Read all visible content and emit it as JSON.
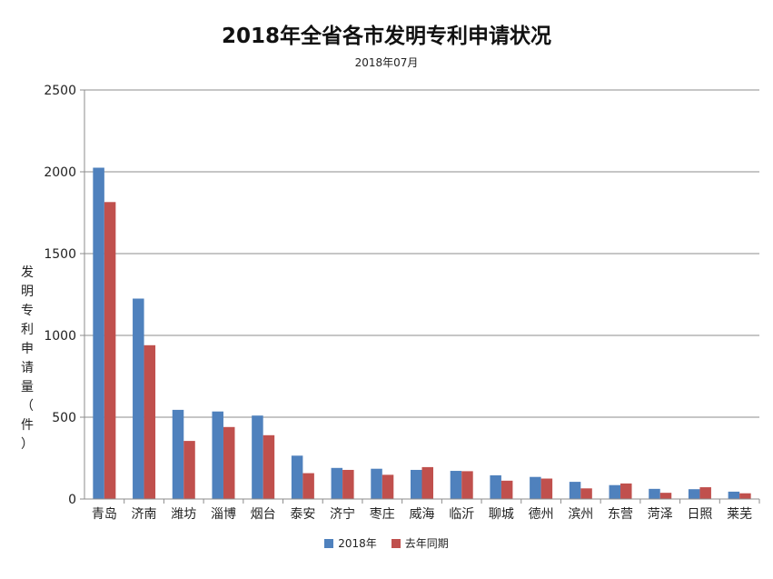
{
  "chart_data": {
    "type": "bar",
    "title": "2018年全省各市发明专利申请状况",
    "subtitle": "2018年07月",
    "ylabel": "发明专利申请量（件）",
    "ylim": [
      0,
      2500
    ],
    "yticks": [
      "0",
      "500",
      "1000",
      "1500",
      "2000",
      "2500"
    ],
    "grid": true,
    "legend_position": "bottom",
    "categories": [
      "青岛",
      "济南",
      "潍坊",
      "淄博",
      "烟台",
      "泰安",
      "济宁",
      "枣庄",
      "威海",
      "临沂",
      "聊城",
      "德州",
      "滨州",
      "东营",
      "菏泽",
      "日照",
      "莱芜"
    ],
    "series": [
      {
        "name": "2018年",
        "color": "#4F81BD",
        "values": [
          2025,
          1225,
          545,
          535,
          510,
          265,
          190,
          185,
          178,
          172,
          145,
          135,
          105,
          85,
          62,
          60,
          45
        ]
      },
      {
        "name": "去年同期",
        "color": "#C0504D",
        "values": [
          1815,
          940,
          355,
          440,
          390,
          158,
          178,
          148,
          195,
          170,
          112,
          125,
          65,
          95,
          38,
          72,
          35
        ]
      }
    ]
  }
}
